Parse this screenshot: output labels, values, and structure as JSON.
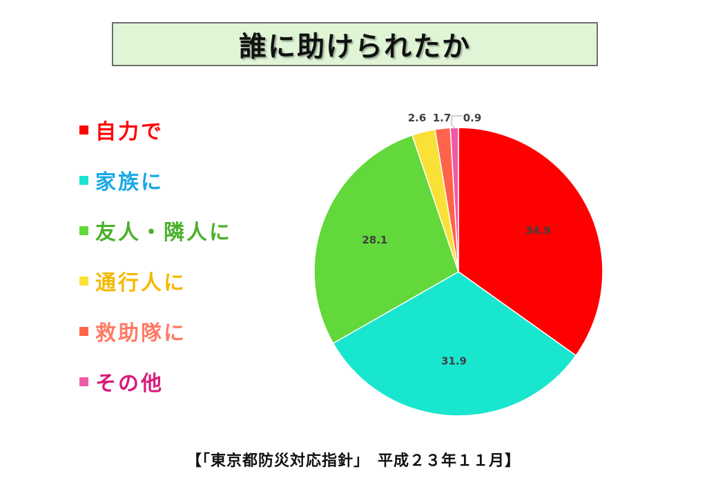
{
  "title": "誰に助けられたか",
  "legend": [
    {
      "label": "自力で",
      "swatch_color": "#ff0000",
      "text_color": "#ff0000"
    },
    {
      "label": "家族に",
      "swatch_color": "#19e6cf",
      "text_color": "#1aa8e6"
    },
    {
      "label": "友人・隣人に",
      "swatch_color": "#62d83a",
      "text_color": "#4bb02a"
    },
    {
      "label": "通行人に",
      "swatch_color": "#f9e136",
      "text_color": "#f5b800"
    },
    {
      "label": "救助隊に",
      "swatch_color": "#ff644a",
      "text_color": "#ff7a66"
    },
    {
      "label": "その他",
      "swatch_color": "#ee5aa8",
      "text_color": "#d81b7a"
    }
  ],
  "footer": "【「東京都防災対応指針」　平成２３年１１月】",
  "chart_data": {
    "type": "pie",
    "title": "誰に助けられたか",
    "categories": [
      "自力で",
      "家族に",
      "友人・隣人に",
      "通行人に",
      "救助隊に",
      "その他"
    ],
    "values": [
      34.9,
      31.9,
      28.1,
      2.6,
      1.7,
      0.9
    ],
    "value_labels": [
      "34.9",
      "31.9",
      "28.1",
      "2.6",
      "1.7",
      "0.9"
    ],
    "colors": [
      "#ff0000",
      "#19e6cf",
      "#62d83a",
      "#f9e136",
      "#ff644a",
      "#ee5aa8"
    ],
    "start_angle_deg": 0,
    "direction": "clockwise",
    "legend_position": "left",
    "source": "【「東京都防災対応指針」　平成２３年１１月】"
  }
}
